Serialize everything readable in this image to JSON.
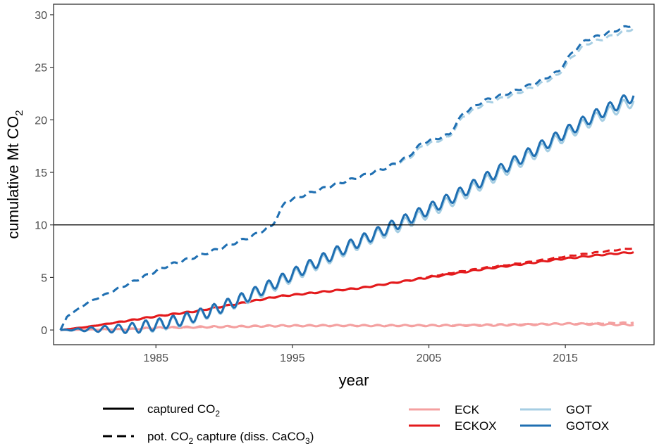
{
  "chart_data": {
    "type": "line",
    "title": "",
    "xlabel": "year",
    "ylabel_main": "cumulative Mt CO",
    "ylabel_sub": "2",
    "xlim": [
      1977.5,
      2021.5
    ],
    "ylim": [
      -1.4,
      31
    ],
    "x_ticks": [
      1985,
      1995,
      2005,
      2015
    ],
    "x_tick_labels": [
      "1985",
      "1995",
      "2005",
      "2015"
    ],
    "y_ticks": [
      0,
      5,
      10,
      15,
      20,
      25,
      30
    ],
    "y_tick_labels": [
      "0",
      "5",
      "10",
      "15",
      "20",
      "25",
      "30"
    ],
    "reference_line": {
      "y": 10
    },
    "grid": false,
    "series": [
      {
        "name": "ECK",
        "style": "solid",
        "color": "#F4A0A0",
        "x": [
          1978,
          1980,
          1983,
          1985,
          1988,
          1991,
          1994,
          1997,
          2000,
          2003,
          2006,
          2009,
          2012,
          2015,
          2017,
          2020
        ],
        "values": [
          0,
          0.03,
          0.08,
          0.2,
          0.28,
          0.33,
          0.4,
          0.42,
          0.42,
          0.42,
          0.43,
          0.45,
          0.5,
          0.6,
          0.55,
          0.5
        ],
        "wiggle": 0.07
      },
      {
        "name": "ECK",
        "style": "dashed",
        "color": "#F4A0A0",
        "x": [
          1978,
          1980,
          1983,
          1985,
          1988,
          1991,
          1994,
          1997,
          2000,
          2003,
          2006,
          2009,
          2012,
          2015,
          2017,
          2020
        ],
        "values": [
          0,
          0.02,
          0.07,
          0.18,
          0.25,
          0.32,
          0.38,
          0.42,
          0.42,
          0.42,
          0.45,
          0.5,
          0.55,
          0.6,
          0.62,
          0.7
        ],
        "wiggle": 0.04
      },
      {
        "name": "ECKOX",
        "style": "solid",
        "color": "#E31A1C",
        "x": [
          1978,
          1980,
          1983,
          1985,
          1988,
          1991,
          1994,
          1997,
          2000,
          2003,
          2006,
          2009,
          2012,
          2015,
          2018,
          2020
        ],
        "values": [
          0,
          0.3,
          0.9,
          1.3,
          1.8,
          2.5,
          3.2,
          3.6,
          4.0,
          4.6,
          5.2,
          5.8,
          6.3,
          6.8,
          7.2,
          7.4
        ],
        "wiggle": 0.06
      },
      {
        "name": "ECKOX",
        "style": "dashed",
        "color": "#E31A1C",
        "x": [
          1978,
          1980,
          1983,
          1985,
          1988,
          1991,
          1994,
          1997,
          2000,
          2003,
          2006,
          2009,
          2012,
          2015,
          2018,
          2020
        ],
        "values": [
          0,
          0.3,
          0.9,
          1.3,
          1.8,
          2.5,
          3.2,
          3.6,
          4.0,
          4.6,
          5.3,
          5.9,
          6.4,
          7.0,
          7.5,
          7.8
        ],
        "wiggle": 0.04
      },
      {
        "name": "GOT",
        "style": "solid",
        "color": "#A6CEE3",
        "x": [
          1978,
          1980,
          1983,
          1985,
          1987,
          1989,
          1991,
          1993,
          1995,
          1997,
          1999,
          2001,
          2003,
          2005,
          2007,
          2009,
          2011,
          2013,
          2015,
          2017,
          2019,
          2020
        ],
        "values": [
          0,
          0.05,
          0.15,
          0.4,
          0.9,
          1.7,
          2.7,
          3.8,
          5.1,
          6.4,
          7.7,
          8.9,
          10.0,
          11.2,
          12.5,
          14.0,
          15.5,
          17.0,
          18.5,
          20.0,
          21.2,
          21.8
        ],
        "wiggle": 0.55
      },
      {
        "name": "GOT",
        "style": "dashed",
        "color": "#A6CEE3",
        "x": [
          1978,
          1978.5,
          1980,
          1982,
          1984,
          1986,
          1988,
          1990,
          1992,
          1993.5,
          1994.5,
          1996,
          1998,
          2000,
          2002,
          2003.5,
          2004.5,
          2006.5,
          2007.5,
          2009,
          2011,
          2013,
          2014.5,
          2015.5,
          2016.5,
          2018,
          2020
        ],
        "values": [
          0,
          1.3,
          2.6,
          3.8,
          5.0,
          6.2,
          7.0,
          7.9,
          8.9,
          9.9,
          12.2,
          12.9,
          13.8,
          14.6,
          15.5,
          16.3,
          17.5,
          18.4,
          20.3,
          21.5,
          22.3,
          23.3,
          24.3,
          26.0,
          27.2,
          27.8,
          28.7
        ],
        "wiggle": 0.12
      },
      {
        "name": "GOTOX",
        "style": "solid",
        "color": "#1F6FB2",
        "x": [
          1978,
          1980,
          1983,
          1985,
          1987,
          1989,
          1991,
          1993,
          1995,
          1997,
          1999,
          2001,
          2003,
          2005,
          2007,
          2009,
          2011,
          2013,
          2015,
          2017,
          2019,
          2020
        ],
        "values": [
          0,
          0.05,
          0.15,
          0.5,
          1.0,
          1.8,
          2.8,
          4.0,
          5.3,
          6.6,
          7.9,
          9.1,
          10.3,
          11.5,
          12.8,
          14.3,
          15.8,
          17.3,
          18.8,
          20.3,
          21.6,
          22.3
        ],
        "wiggle": 0.55
      },
      {
        "name": "GOTOX",
        "style": "dashed",
        "color": "#1F6FB2",
        "x": [
          1978,
          1978.5,
          1980,
          1982,
          1984,
          1986,
          1988,
          1990,
          1992,
          1993.5,
          1994.5,
          1996,
          1998,
          2000,
          2002,
          2003.5,
          2004.5,
          2006.5,
          2007.5,
          2009,
          2011,
          2013,
          2014.5,
          2015.5,
          2016.5,
          2018,
          2020
        ],
        "values": [
          0,
          1.3,
          2.6,
          3.8,
          5.0,
          6.2,
          7.0,
          7.9,
          8.9,
          9.9,
          12.2,
          12.9,
          13.8,
          14.6,
          15.5,
          16.5,
          17.8,
          18.6,
          20.6,
          21.8,
          22.6,
          23.6,
          24.6,
          26.4,
          27.6,
          28.2,
          29.1
        ],
        "wiggle": 0.12
      }
    ],
    "legend_linetype": [
      {
        "style": "solid",
        "label_main": "captured CO",
        "label_sub": "2",
        "label_rest": ""
      },
      {
        "style": "dashed",
        "label_main": "pot. CO",
        "label_sub": "2",
        "label_rest": " capture  (diss. CaCO",
        "label_sub2": "3",
        "label_end": ")"
      }
    ],
    "legend_color": [
      {
        "label": "ECK",
        "color": "#F4A0A0"
      },
      {
        "label": "ECKOX",
        "color": "#E31A1C"
      },
      {
        "label": "GOT",
        "color": "#A6CEE3"
      },
      {
        "label": "GOTOX",
        "color": "#1F6FB2"
      }
    ],
    "legend_position": "bottom"
  }
}
